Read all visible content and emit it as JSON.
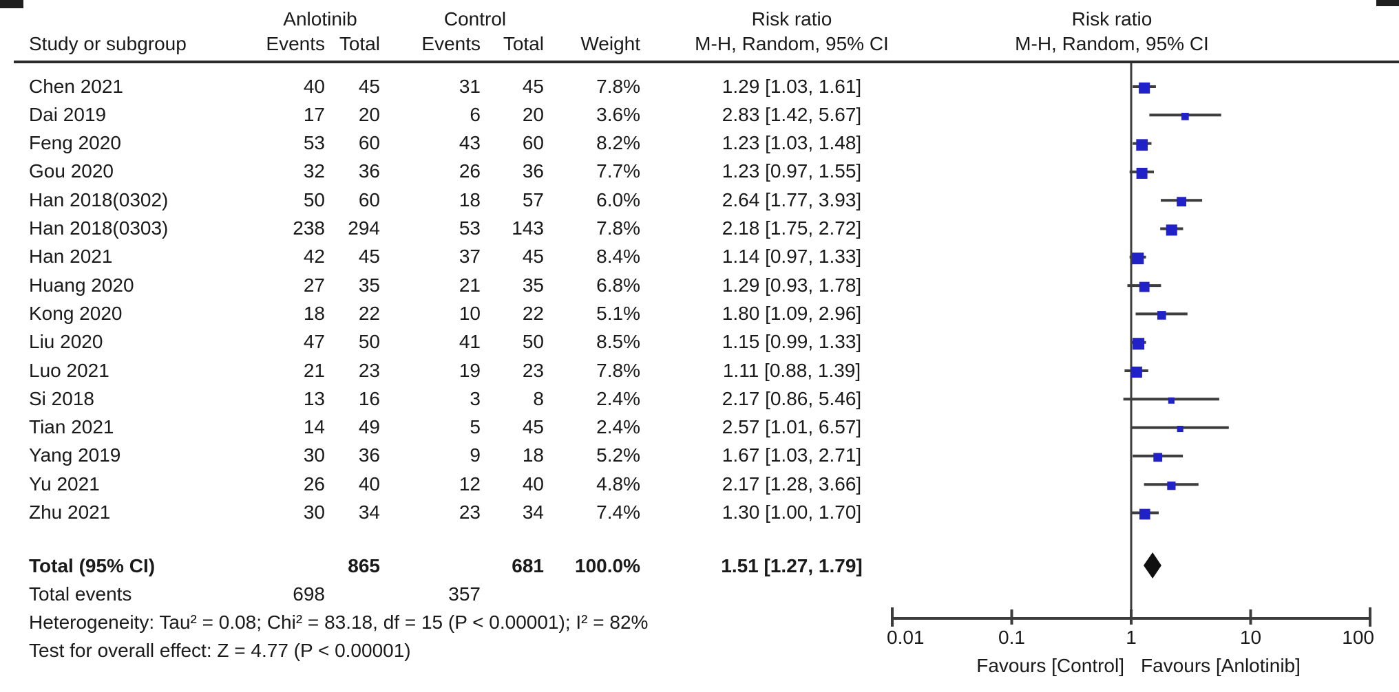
{
  "header": {
    "group1": "Anlotinib",
    "group2": "Control",
    "study_col": "Study or subgroup",
    "events1": "Events",
    "total1": "Total",
    "events2": "Events",
    "total2": "Total",
    "weight": "Weight",
    "effect_left_line1": "Risk ratio",
    "effect_left_line2": "M-H, Random, 95% CI",
    "effect_right_line1": "Risk ratio",
    "effect_right_line2": "M-H, Random, 95% CI"
  },
  "chart_data": {
    "type": "forest",
    "effect_measure": "Risk ratio, M-H, Random, 95% CI",
    "x_scale": "log10",
    "x_range": [
      0.01,
      100
    ],
    "axis_ticks": [
      0.01,
      0.1,
      1,
      10,
      100
    ],
    "axis_tick_labels": [
      "0.01",
      "0.1",
      "1",
      "10",
      "100"
    ],
    "favours_left": "Favours [Control]",
    "favours_right": "Favours [Anlotinib]",
    "studies": [
      {
        "name": "Chen 2021",
        "e1": 40,
        "t1": 45,
        "e2": 31,
        "t2": 45,
        "weight": "7.8%",
        "w": 7.8,
        "rr": 1.29,
        "lo": 1.03,
        "hi": 1.61,
        "label": "1.29 [1.03, 1.61]"
      },
      {
        "name": "Dai 2019",
        "e1": 17,
        "t1": 20,
        "e2": 6,
        "t2": 20,
        "weight": "3.6%",
        "w": 3.6,
        "rr": 2.83,
        "lo": 1.42,
        "hi": 5.67,
        "label": "2.83 [1.42, 5.67]"
      },
      {
        "name": "Feng 2020",
        "e1": 53,
        "t1": 60,
        "e2": 43,
        "t2": 60,
        "weight": "8.2%",
        "w": 8.2,
        "rr": 1.23,
        "lo": 1.03,
        "hi": 1.48,
        "label": "1.23 [1.03, 1.48]"
      },
      {
        "name": "Gou 2020",
        "e1": 32,
        "t1": 36,
        "e2": 26,
        "t2": 36,
        "weight": "7.7%",
        "w": 7.7,
        "rr": 1.23,
        "lo": 0.97,
        "hi": 1.55,
        "label": "1.23 [0.97, 1.55]"
      },
      {
        "name": "Han 2018(0302)",
        "e1": 50,
        "t1": 60,
        "e2": 18,
        "t2": 57,
        "weight": "6.0%",
        "w": 6.0,
        "rr": 2.64,
        "lo": 1.77,
        "hi": 3.93,
        "label": "2.64 [1.77, 3.93]"
      },
      {
        "name": "Han 2018(0303)",
        "e1": 238,
        "t1": 294,
        "e2": 53,
        "t2": 143,
        "weight": "7.8%",
        "w": 7.8,
        "rr": 2.18,
        "lo": 1.75,
        "hi": 2.72,
        "label": "2.18 [1.75, 2.72]"
      },
      {
        "name": "Han 2021",
        "e1": 42,
        "t1": 45,
        "e2": 37,
        "t2": 45,
        "weight": "8.4%",
        "w": 8.4,
        "rr": 1.14,
        "lo": 0.97,
        "hi": 1.33,
        "label": "1.14 [0.97, 1.33]"
      },
      {
        "name": "Huang 2020",
        "e1": 27,
        "t1": 35,
        "e2": 21,
        "t2": 35,
        "weight": "6.8%",
        "w": 6.8,
        "rr": 1.29,
        "lo": 0.93,
        "hi": 1.78,
        "label": "1.29 [0.93, 1.78]"
      },
      {
        "name": "Kong 2020",
        "e1": 18,
        "t1": 22,
        "e2": 10,
        "t2": 22,
        "weight": "5.1%",
        "w": 5.1,
        "rr": 1.8,
        "lo": 1.09,
        "hi": 2.96,
        "label": "1.80 [1.09, 2.96]"
      },
      {
        "name": "Liu 2020",
        "e1": 47,
        "t1": 50,
        "e2": 41,
        "t2": 50,
        "weight": "8.5%",
        "w": 8.5,
        "rr": 1.15,
        "lo": 0.99,
        "hi": 1.33,
        "label": "1.15 [0.99, 1.33]"
      },
      {
        "name": "Luo 2021",
        "e1": 21,
        "t1": 23,
        "e2": 19,
        "t2": 23,
        "weight": "7.8%",
        "w": 7.8,
        "rr": 1.11,
        "lo": 0.88,
        "hi": 1.39,
        "label": "1.11 [0.88, 1.39]"
      },
      {
        "name": "Si 2018",
        "e1": 13,
        "t1": 16,
        "e2": 3,
        "t2": 8,
        "weight": "2.4%",
        "w": 2.4,
        "rr": 2.17,
        "lo": 0.86,
        "hi": 5.46,
        "label": "2.17 [0.86, 5.46]"
      },
      {
        "name": "Tian 2021",
        "e1": 14,
        "t1": 49,
        "e2": 5,
        "t2": 45,
        "weight": "2.4%",
        "w": 2.4,
        "rr": 2.57,
        "lo": 1.01,
        "hi": 6.57,
        "label": "2.57 [1.01, 6.57]"
      },
      {
        "name": "Yang 2019",
        "e1": 30,
        "t1": 36,
        "e2": 9,
        "t2": 18,
        "weight": "5.2%",
        "w": 5.2,
        "rr": 1.67,
        "lo": 1.03,
        "hi": 2.71,
        "label": "1.67 [1.03, 2.71]"
      },
      {
        "name": "Yu 2021",
        "e1": 26,
        "t1": 40,
        "e2": 12,
        "t2": 40,
        "weight": "4.8%",
        "w": 4.8,
        "rr": 2.17,
        "lo": 1.28,
        "hi": 3.66,
        "label": "2.17 [1.28, 3.66]"
      },
      {
        "name": "Zhu 2021",
        "e1": 30,
        "t1": 34,
        "e2": 23,
        "t2": 34,
        "weight": "7.4%",
        "w": 7.4,
        "rr": 1.3,
        "lo": 1.0,
        "hi": 1.7,
        "label": "1.30 [1.00, 1.70]"
      }
    ],
    "total": {
      "label": "Total (95% CI)",
      "t1": 865,
      "t2": 681,
      "weight": "100.0%",
      "rr": 1.51,
      "lo": 1.27,
      "hi": 1.79,
      "estimate_label": "1.51 [1.27, 1.79]"
    },
    "total_events": {
      "label": "Total events",
      "e1": 698,
      "e2": 357
    },
    "heterogeneity": "Heterogeneity: Tau² = 0.08; Chi² = 83.18, df = 15 (P < 0.00001); I² = 82%",
    "overall_effect": "Test for overall effect: Z = 4.77 (P < 0.00001)"
  },
  "colors": {
    "square": "#2121c8",
    "line": "#3d3d3d",
    "diamond": "#101010",
    "text": "#1a1a1a",
    "rule": "#2b2b2b"
  }
}
